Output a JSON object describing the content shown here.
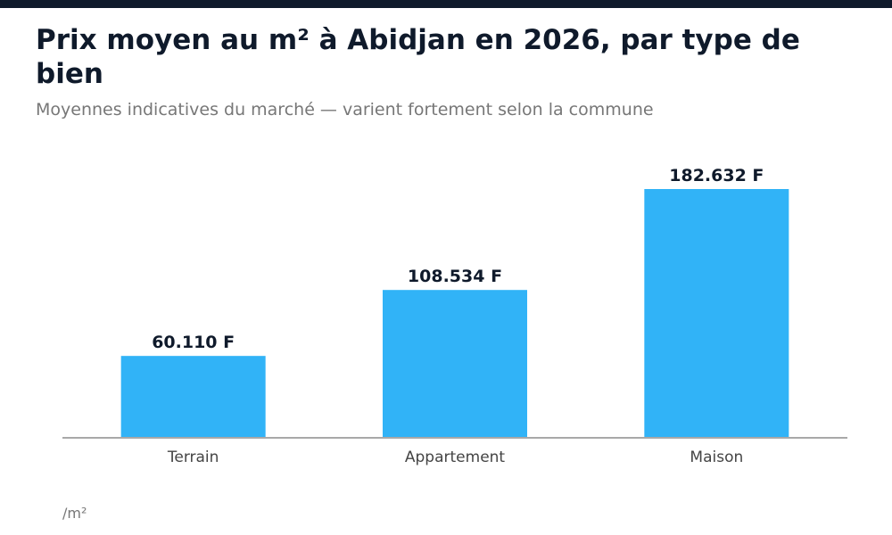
{
  "header": {
    "title": "Prix moyen au m² à Abidjan en 2026, par type de bien",
    "subtitle": "Moyennes indicatives du marché — varient fortement selon la commune"
  },
  "footer": {
    "unit_note": "/m²"
  },
  "colors": {
    "top_bar": "#0f1a2b",
    "bar": "#31b3f7",
    "value_label": "#0f1a2b",
    "axis": "#a8a8a8",
    "category_label": "#444444"
  },
  "chart_data": {
    "type": "bar",
    "categories": [
      "Terrain",
      "Appartement",
      "Maison"
    ],
    "values": [
      60110,
      108534,
      182632
    ],
    "data_labels": [
      "60.110 F",
      "108.534 F",
      "182.632 F"
    ],
    "grid": false
  }
}
